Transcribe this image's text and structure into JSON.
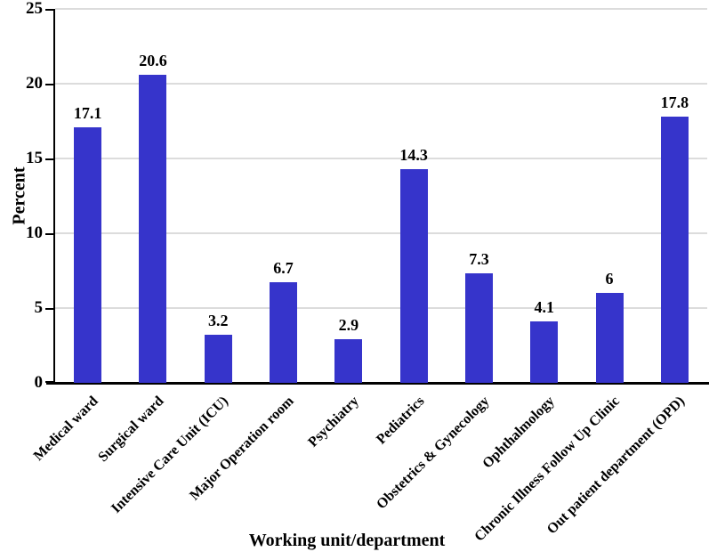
{
  "chart_data": {
    "type": "bar",
    "title": "",
    "xlabel": "Working unit/department",
    "ylabel": "Percent",
    "categories": [
      "Medical ward",
      "Surgical ward",
      "Intensive Care Unit (ICU)",
      "Major Operation room",
      "Psychiatry",
      "Pediatrics",
      "Obstetrics & Gynecology",
      "Ophthalmology",
      "Chronic Illness Follow Up Clinic",
      "Out patient department (OPD)"
    ],
    "values": [
      17.1,
      20.6,
      3.2,
      6.7,
      2.9,
      14.3,
      7.3,
      4.1,
      6,
      17.8
    ],
    "value_labels": [
      "17.1",
      "20.6",
      "3.2",
      "6.7",
      "2.9",
      "14.3",
      "7.3",
      "4.1",
      "6",
      "17.8"
    ],
    "ylim": [
      0,
      25
    ],
    "yticks": [
      0,
      5,
      10,
      15,
      20,
      25
    ],
    "grid": true,
    "legend": "none",
    "bar_color": "#3634CB",
    "gridline_color": "#dcdcdc",
    "axis_color": "#000000",
    "text_color": "#000000"
  }
}
